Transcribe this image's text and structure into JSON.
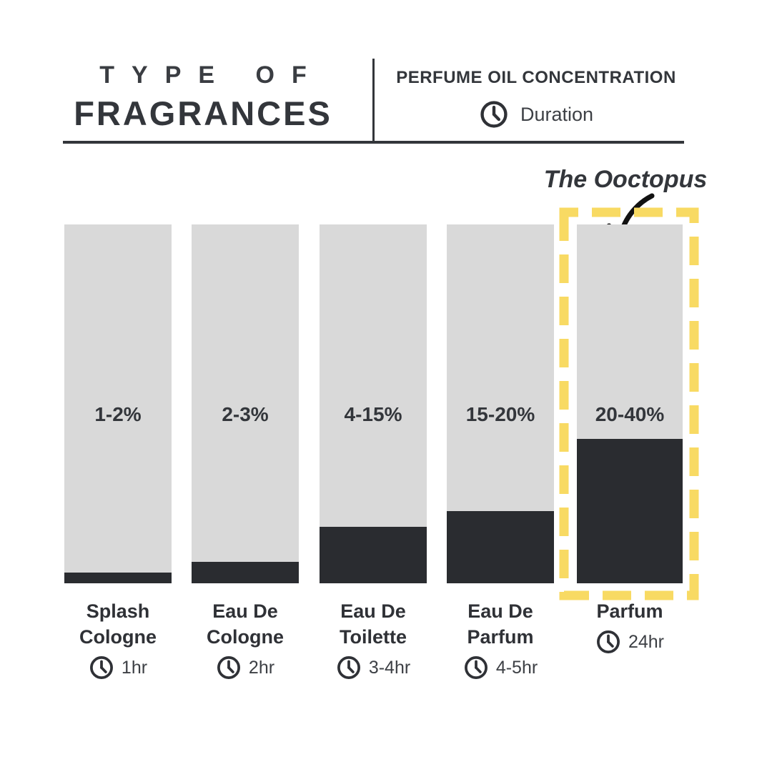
{
  "header": {
    "title_line1": "TYPE OF",
    "title_line2": "FRAGRANCES",
    "right_title": "PERFUME OIL CONCENTRATION",
    "duration_label": "Duration"
  },
  "annotation": {
    "text": "The Ooctopus"
  },
  "colors": {
    "bar_gray": "#d9d9d9",
    "bar_dark": "#2a2c30",
    "highlight_yellow": "#f8da63",
    "text_dark": "#33363b",
    "background": "#ffffff"
  },
  "bars": [
    {
      "percent": "1-2%",
      "name_lines": [
        "Splash",
        "Cologne"
      ],
      "duration": "1hr",
      "fill_fraction": 0.03
    },
    {
      "percent": "2-3%",
      "name_lines": [
        "Eau De",
        "Cologne"
      ],
      "duration": "2hr",
      "fill_fraction": 0.06
    },
    {
      "percent": "4-15%",
      "name_lines": [
        "Eau De",
        "Toilette"
      ],
      "duration": "3-4hr",
      "fill_fraction": 0.157
    },
    {
      "percent": "15-20%",
      "name_lines": [
        "Eau De",
        "Parfum"
      ],
      "duration": "4-5hr",
      "fill_fraction": 0.201
    },
    {
      "percent": "20-40%",
      "name_lines": [
        "Parfum"
      ],
      "duration": "24hr",
      "fill_fraction": 0.403
    }
  ],
  "chart_data": {
    "type": "bar",
    "title": "Type of Fragrances — Perfume Oil Concentration",
    "categories": [
      "Splash Cologne",
      "Eau De Cologne",
      "Eau De Toilette",
      "Eau De Parfum",
      "Parfum"
    ],
    "series": [
      {
        "name": "Perfume oil concentration (%)",
        "labels": [
          "1-2%",
          "2-3%",
          "4-15%",
          "15-20%",
          "20-40%"
        ],
        "values_min": [
          1,
          2,
          4,
          15,
          20
        ],
        "values_max": [
          2,
          3,
          15,
          20,
          40
        ]
      },
      {
        "name": "Duration",
        "values": [
          "1hr",
          "2hr",
          "3-4hr",
          "4-5hr",
          "24hr"
        ]
      }
    ],
    "ylim": [
      0,
      100
    ],
    "grid": false,
    "legend_position": "none",
    "highlighted_category": "Parfum",
    "annotation": "The Ooctopus"
  }
}
